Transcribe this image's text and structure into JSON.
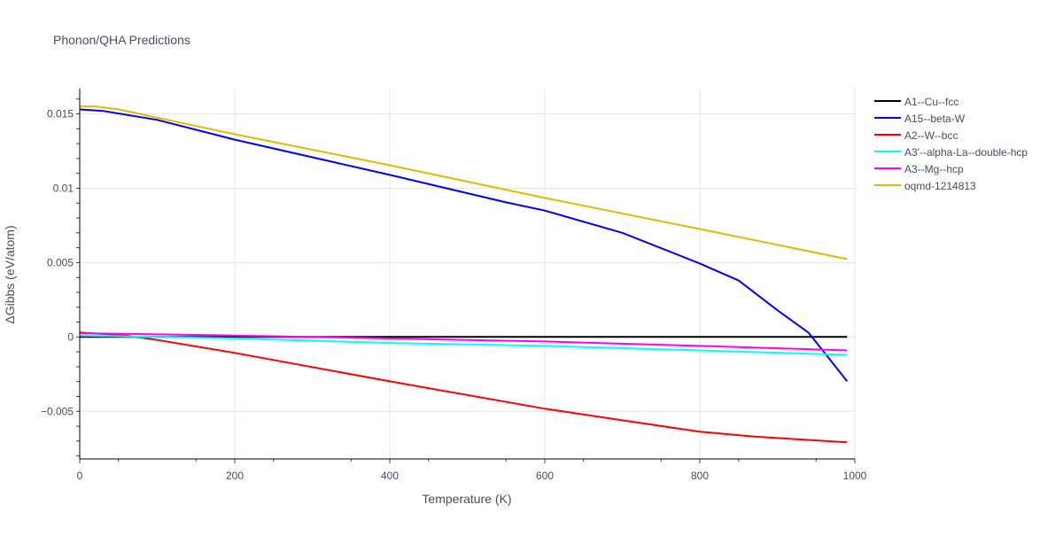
{
  "chart_data": {
    "type": "line",
    "title": "Phonon/QHA Predictions",
    "xlabel": "Temperature (K)",
    "ylabel": "ΔGibbs (eV/atom)",
    "xlim": [
      0,
      1000
    ],
    "ylim": [
      -0.0082,
      0.0167
    ],
    "xticks": [
      0,
      200,
      400,
      600,
      800,
      1000
    ],
    "xtick_labels": [
      "0",
      "200",
      "400",
      "600",
      "800",
      "1000"
    ],
    "yticks": [
      -0.005,
      0,
      0.005,
      0.01,
      0.015
    ],
    "ytick_labels": [
      "−0.005",
      "0",
      "0.005",
      "0.01",
      "0.015"
    ],
    "grid": true,
    "legend_position": "right",
    "series": [
      {
        "name": "A1--Cu--fcc",
        "color": "#000000",
        "x": [
          0,
          200,
          400,
          600,
          800,
          990
        ],
        "y": [
          0,
          0,
          0,
          0,
          0,
          0
        ]
      },
      {
        "name": "A15--beta-W",
        "color": "#0000ff",
        "x": [
          0,
          30,
          100,
          200,
          400,
          550,
          600,
          700,
          800,
          850,
          900,
          940,
          960,
          990
        ],
        "y": [
          0.0153,
          0.0152,
          0.0146,
          0.01327,
          0.0109,
          0.00905,
          0.0085,
          0.007,
          0.00494,
          0.0038,
          0.0018,
          0.0003,
          -0.001,
          -0.00298
        ]
      },
      {
        "name": "A2--W--bcc",
        "color": "#ff0000",
        "x": [
          0,
          60,
          100,
          200,
          400,
          600,
          700,
          800,
          870,
          990
        ],
        "y": [
          0.0003,
          0.0001,
          -0.0002,
          -0.00107,
          -0.00298,
          -0.00482,
          -0.0056,
          -0.00637,
          -0.0067,
          -0.00708
        ]
      },
      {
        "name": "A3'--alpha-La--double-hcp",
        "color": "#00ffff",
        "x": [
          0,
          200,
          400,
          600,
          800,
          990
        ],
        "y": [
          0.0001,
          -0.0001,
          -0.0004,
          -0.0006,
          -0.0009,
          -0.0012
        ]
      },
      {
        "name": "A3--Mg--hcp",
        "color": "#ff00ff",
        "x": [
          0,
          200,
          400,
          600,
          800,
          990
        ],
        "y": [
          0.00025,
          0.0001,
          -0.0001,
          -0.0003,
          -0.0006,
          -0.0009
        ]
      },
      {
        "name": "oqmd-1214813",
        "color": "#e6b800",
        "x": [
          0,
          20,
          50,
          200,
          400,
          600,
          800,
          990
        ],
        "y": [
          0.0155,
          0.0155,
          0.0153,
          0.01363,
          0.01155,
          0.00935,
          0.00726,
          0.00524
        ]
      }
    ]
  }
}
